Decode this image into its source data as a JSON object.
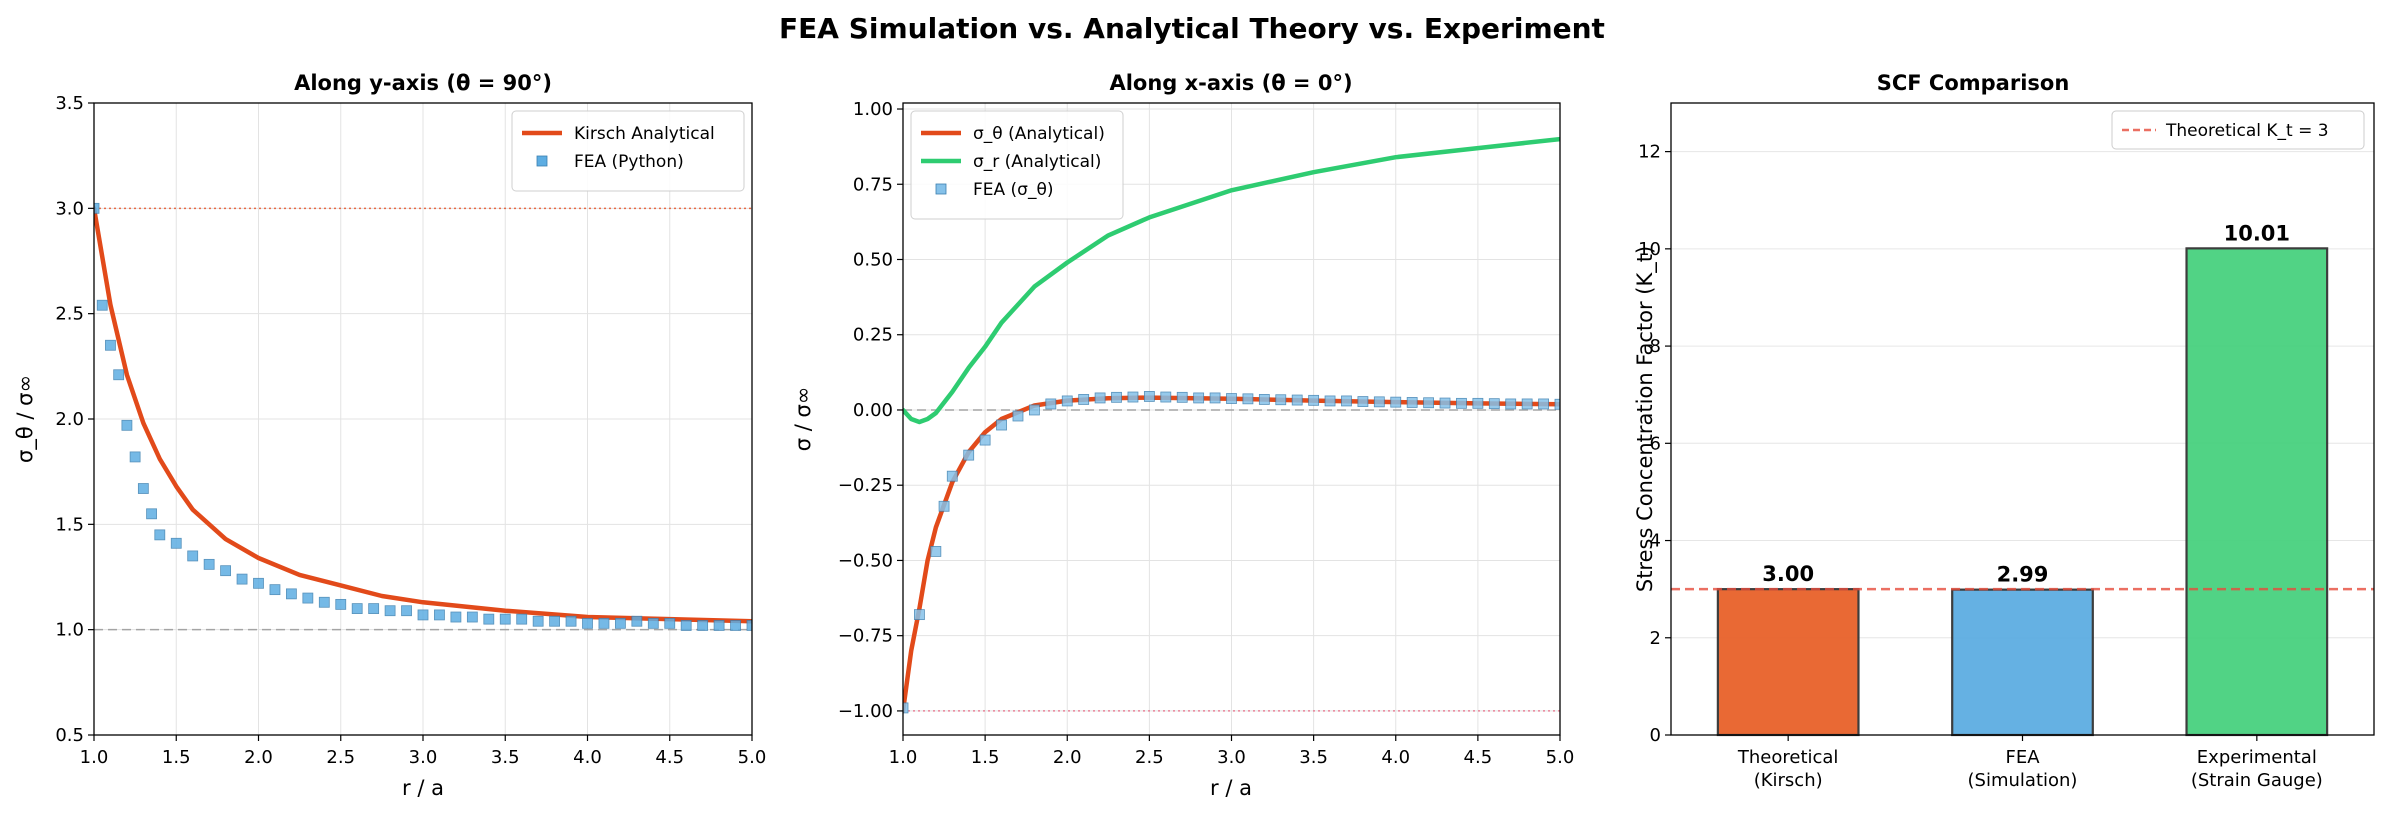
{
  "figure": {
    "title": "FEA Simulation vs. Analytical Theory vs. Experiment"
  },
  "chart_data": [
    {
      "type": "line",
      "title": "Along y-axis (θ = 90°)",
      "xlabel": "r / a",
      "ylabel": "σ_θ / σ∞",
      "xlim": [
        1.0,
        5.0
      ],
      "ylim": [
        0.5,
        3.5
      ],
      "xticks": [
        "1.0",
        "1.5",
        "2.0",
        "2.5",
        "3.0",
        "3.5",
        "4.0",
        "4.5",
        "5.0"
      ],
      "yticks": [
        "0.5",
        "1.0",
        "1.5",
        "2.0",
        "2.5",
        "3.0",
        "3.5"
      ],
      "grid": true,
      "legend_position": "top-right",
      "reference_lines": [
        {
          "y": 3.0,
          "color": "#e8562a",
          "style": "dotted"
        },
        {
          "y": 1.0,
          "color": "#999999",
          "style": "dashed"
        }
      ],
      "series": [
        {
          "name": "Kirsch Analytical",
          "color": "#e24a1a",
          "kind": "line",
          "x": [
            1.0,
            1.1,
            1.2,
            1.3,
            1.4,
            1.5,
            1.6,
            1.8,
            2.0,
            2.25,
            2.5,
            2.75,
            3.0,
            3.5,
            4.0,
            4.5,
            5.0
          ],
          "y": [
            3.0,
            2.54,
            2.21,
            1.98,
            1.81,
            1.68,
            1.57,
            1.43,
            1.34,
            1.26,
            1.21,
            1.16,
            1.13,
            1.09,
            1.06,
            1.05,
            1.04
          ]
        },
        {
          "name": "FEA (Python)",
          "color": "#5dade2",
          "kind": "markers",
          "x": [
            1.0,
            1.05,
            1.1,
            1.15,
            1.2,
            1.25,
            1.3,
            1.35,
            1.4,
            1.5,
            1.6,
            1.7,
            1.8,
            1.9,
            2.0,
            2.1,
            2.2,
            2.3,
            2.4,
            2.5,
            2.6,
            2.7,
            2.8,
            2.9,
            3.0,
            3.1,
            3.2,
            3.3,
            3.4,
            3.5,
            3.6,
            3.7,
            3.8,
            3.9,
            4.0,
            4.1,
            4.2,
            4.3,
            4.4,
            4.5,
            4.6,
            4.7,
            4.8,
            4.9,
            5.0
          ],
          "y": [
            3.0,
            2.54,
            2.35,
            2.21,
            1.97,
            1.82,
            1.67,
            1.55,
            1.45,
            1.41,
            1.35,
            1.31,
            1.28,
            1.24,
            1.22,
            1.19,
            1.17,
            1.15,
            1.13,
            1.12,
            1.1,
            1.1,
            1.09,
            1.09,
            1.07,
            1.07,
            1.06,
            1.06,
            1.05,
            1.05,
            1.05,
            1.04,
            1.04,
            1.04,
            1.03,
            1.03,
            1.03,
            1.04,
            1.03,
            1.03,
            1.02,
            1.02,
            1.02,
            1.02,
            1.02
          ]
        }
      ]
    },
    {
      "type": "line",
      "title": "Along x-axis (θ = 0°)",
      "xlabel": "r / a",
      "ylabel": "σ / σ∞",
      "xlim": [
        1.0,
        5.0
      ],
      "ylim": [
        -1.08,
        1.02
      ],
      "xticks": [
        "1.0",
        "1.5",
        "2.0",
        "2.5",
        "3.0",
        "3.5",
        "4.0",
        "4.5",
        "5.0"
      ],
      "yticks": [
        "−1.00",
        "−0.75",
        "−0.50",
        "−0.25",
        "0.00",
        "0.25",
        "0.50",
        "0.75",
        "1.00"
      ],
      "grid": true,
      "legend_position": "top-left",
      "reference_lines": [
        {
          "y": 0.0,
          "color": "#999999",
          "style": "dashed"
        },
        {
          "y": -1.0,
          "color": "#e8738a",
          "style": "dotted"
        }
      ],
      "series": [
        {
          "name": "σ_θ (Analytical)",
          "color": "#e24a1a",
          "kind": "line",
          "x": [
            1.0,
            1.05,
            1.1,
            1.15,
            1.2,
            1.3,
            1.4,
            1.5,
            1.6,
            1.8,
            2.0,
            2.25,
            2.5,
            3.0,
            3.5,
            4.0,
            4.5,
            5.0
          ],
          "y": [
            -1.0,
            -0.8,
            -0.66,
            -0.5,
            -0.39,
            -0.24,
            -0.14,
            -0.074,
            -0.03,
            0.015,
            0.031,
            0.039,
            0.041,
            0.037,
            0.031,
            0.026,
            0.022,
            0.019
          ]
        },
        {
          "name": "σ_r (Analytical)",
          "color": "#2ecc71",
          "kind": "line",
          "x": [
            1.0,
            1.05,
            1.1,
            1.15,
            1.2,
            1.3,
            1.4,
            1.5,
            1.6,
            1.8,
            2.0,
            2.25,
            2.5,
            3.0,
            3.5,
            4.0,
            4.5,
            5.0
          ],
          "y": [
            0.0,
            -0.03,
            -0.04,
            -0.03,
            -0.01,
            0.06,
            0.14,
            0.21,
            0.29,
            0.41,
            0.49,
            0.58,
            0.64,
            0.73,
            0.79,
            0.84,
            0.87,
            0.9
          ]
        },
        {
          "name": "FEA (σ_θ)",
          "color": "#85c1e9",
          "kind": "markers",
          "x": [
            1.0,
            1.1,
            1.2,
            1.25,
            1.3,
            1.4,
            1.5,
            1.6,
            1.7,
            1.8,
            1.9,
            2.0,
            2.1,
            2.2,
            2.3,
            2.4,
            2.5,
            2.6,
            2.7,
            2.8,
            2.9,
            3.0,
            3.1,
            3.2,
            3.3,
            3.4,
            3.5,
            3.6,
            3.7,
            3.8,
            3.9,
            4.0,
            4.1,
            4.2,
            4.3,
            4.4,
            4.5,
            4.6,
            4.7,
            4.8,
            4.9,
            5.0
          ],
          "y": [
            -0.99,
            -0.68,
            -0.47,
            -0.32,
            -0.22,
            -0.15,
            -0.1,
            -0.05,
            -0.02,
            0.0,
            0.02,
            0.03,
            0.035,
            0.04,
            0.042,
            0.043,
            0.045,
            0.043,
            0.042,
            0.04,
            0.04,
            0.038,
            0.037,
            0.035,
            0.034,
            0.033,
            0.032,
            0.03,
            0.03,
            0.028,
            0.027,
            0.026,
            0.025,
            0.024,
            0.023,
            0.022,
            0.022,
            0.021,
            0.02,
            0.02,
            0.02,
            0.019
          ]
        }
      ]
    },
    {
      "type": "bar",
      "title": "SCF Comparison",
      "xlabel": "",
      "ylabel": "Stress Concentration Factor (K_t)",
      "ylim": [
        0,
        13
      ],
      "yticks": [
        "0",
        "2",
        "4",
        "6",
        "8",
        "10",
        "12"
      ],
      "grid": true,
      "legend_position": "top-right",
      "categories": [
        [
          "Theoretical",
          "(Kirsch)"
        ],
        [
          "FEA",
          "(Simulation)"
        ],
        [
          "Experimental",
          "(Strain Gauge)"
        ]
      ],
      "values": [
        3.0,
        2.99,
        10.01
      ],
      "value_labels": [
        "3.00",
        "2.99",
        "10.01"
      ],
      "bar_colors": [
        "#e8622a",
        "#5dade2",
        "#48d17f"
      ],
      "reference_line": {
        "y": 3.0,
        "label": "Theoretical K_t = 3",
        "color": "#e74c3c",
        "style": "dashed"
      }
    }
  ]
}
